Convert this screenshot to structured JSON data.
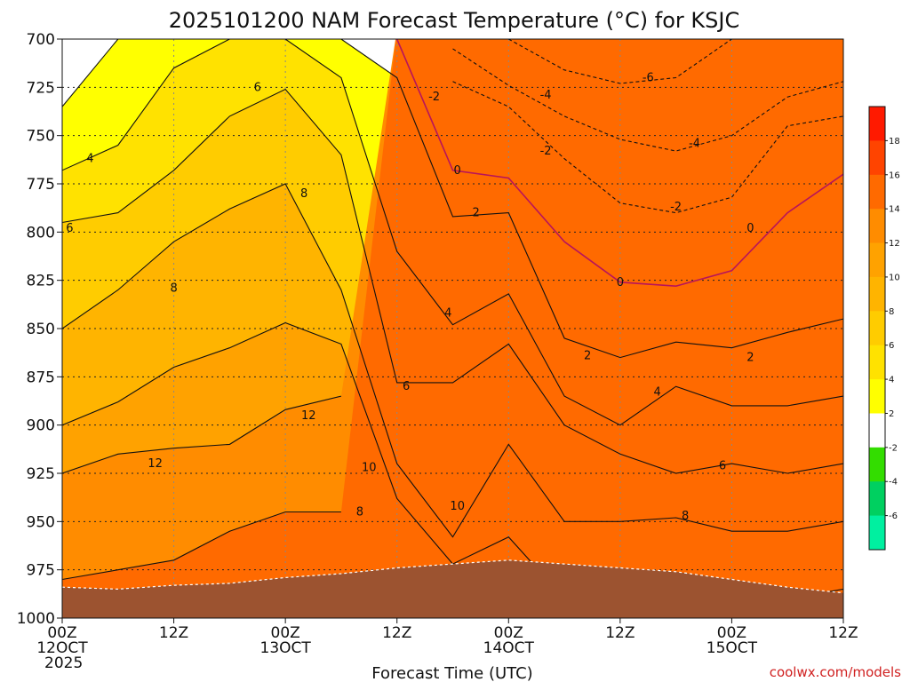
{
  "chart_data": {
    "type": "heatmap",
    "title": "2025101200 NAM Forecast Temperature (°C) for KSJC",
    "xlabel": "Forecast Time (UTC)",
    "ylabel": "",
    "credit": "coolwx.com/models",
    "y_axis": {
      "scale": "pressure (hPa), inverted",
      "ticks": [
        700,
        725,
        750,
        775,
        800,
        825,
        850,
        875,
        900,
        925,
        950,
        975,
        1000
      ],
      "range": [
        700,
        1000
      ]
    },
    "x_axis": {
      "range_hours": [
        0,
        84
      ],
      "ticks": [
        {
          "hours": 0,
          "line1": "00Z",
          "line2": "12OCT",
          "line3": "2025"
        },
        {
          "hours": 12,
          "line1": "12Z",
          "line2": "",
          "line3": ""
        },
        {
          "hours": 24,
          "line1": "00Z",
          "line2": "13OCT",
          "line3": ""
        },
        {
          "hours": 36,
          "line1": "12Z",
          "line2": "",
          "line3": ""
        },
        {
          "hours": 48,
          "line1": "00Z",
          "line2": "14OCT",
          "line3": ""
        },
        {
          "hours": 60,
          "line1": "12Z",
          "line2": "",
          "line3": ""
        },
        {
          "hours": 72,
          "line1": "00Z",
          "line2": "15OCT",
          "line3": ""
        },
        {
          "hours": 84,
          "line1": "12Z",
          "line2": "",
          "line3": ""
        }
      ]
    },
    "grid": true,
    "legend": {
      "placement": "right",
      "labels": [
        "18",
        "16",
        "14",
        "12",
        "10",
        "8",
        "6",
        "4",
        "2",
        "-2",
        "-4",
        "-6"
      ],
      "colors": [
        "#ff1a00",
        "#ff4400",
        "#ff6a00",
        "#ff8c00",
        "#ffa200",
        "#ffb400",
        "#ffcc00",
        "#ffe200",
        "#ffff00",
        "#ffffff",
        "#33dd00",
        "#00d060",
        "#00f0a0"
      ]
    },
    "hours": [
      0,
      6,
      12,
      18,
      24,
      30,
      36,
      42,
      48,
      54,
      60,
      66,
      72,
      78,
      84
    ],
    "isotherms": [
      {
        "temp": -6,
        "p": [
          null,
          null,
          null,
          null,
          null,
          null,
          null,
          null,
          700,
          716,
          723,
          720,
          700,
          null,
          null
        ]
      },
      {
        "temp": -4,
        "p": [
          null,
          null,
          null,
          null,
          null,
          null,
          null,
          705,
          724,
          740,
          752,
          758,
          750,
          730,
          722
        ]
      },
      {
        "temp": -2,
        "p": [
          null,
          null,
          null,
          null,
          null,
          null,
          null,
          722,
          735,
          762,
          785,
          790,
          782,
          745,
          740
        ]
      },
      {
        "temp": 0,
        "p": [
          700,
          null,
          null,
          null,
          null,
          null,
          700,
          768,
          772,
          805,
          826,
          828,
          820,
          790,
          770
        ]
      },
      {
        "temp": 2,
        "p": [
          735,
          700,
          null,
          null,
          null,
          700,
          720,
          792,
          790,
          855,
          865,
          857,
          860,
          852,
          845
        ]
      },
      {
        "temp": 4,
        "p": [
          768,
          755,
          715,
          700,
          700,
          720,
          810,
          848,
          832,
          885,
          900,
          880,
          890,
          890,
          885
        ]
      },
      {
        "temp": 6,
        "p": [
          795,
          790,
          768,
          740,
          726,
          760,
          878,
          878,
          858,
          900,
          915,
          925,
          920,
          925,
          920
        ]
      },
      {
        "temp": 8,
        "p": [
          850,
          830,
          805,
          788,
          775,
          830,
          920,
          958,
          910,
          950,
          950,
          948,
          955,
          955,
          950
        ]
      },
      {
        "temp": 10,
        "p": [
          900,
          888,
          870,
          860,
          847,
          858,
          938,
          972,
          958,
          990,
          990,
          985,
          990,
          990,
          985
        ]
      },
      {
        "temp": 12,
        "p": [
          925,
          915,
          912,
          910,
          892,
          885,
          null,
          null,
          null,
          null,
          null,
          null,
          null,
          null,
          null
        ]
      },
      {
        "temp": 14,
        "p": [
          980,
          975,
          970,
          955,
          945,
          945,
          null,
          null,
          null,
          null,
          null,
          null,
          null,
          null,
          null
        ]
      }
    ],
    "contour_labels": [
      {
        "text": "-6",
        "hours": 63,
        "p": 720
      },
      {
        "text": "-4",
        "hours": 52,
        "p": 729
      },
      {
        "text": "-4",
        "hours": 68,
        "p": 754
      },
      {
        "text": "-2",
        "hours": 40,
        "p": 730
      },
      {
        "text": "-2",
        "hours": 52,
        "p": 758
      },
      {
        "text": "-2",
        "hours": 66,
        "p": 787
      },
      {
        "text": "0",
        "hours": 42.5,
        "p": 768
      },
      {
        "text": "0",
        "hours": 60,
        "p": 826
      },
      {
        "text": "0",
        "hours": 74,
        "p": 798
      },
      {
        "text": "2",
        "hours": 44.5,
        "p": 790
      },
      {
        "text": "2",
        "hours": 56.5,
        "p": 864
      },
      {
        "text": "2",
        "hours": 74,
        "p": 865
      },
      {
        "text": "4",
        "hours": 3,
        "p": 762
      },
      {
        "text": "4",
        "hours": 41.5,
        "p": 842
      },
      {
        "text": "4",
        "hours": 64,
        "p": 883
      },
      {
        "text": "6",
        "hours": 21,
        "p": 725
      },
      {
        "text": "6",
        "hours": 0.8,
        "p": 798
      },
      {
        "text": "6",
        "hours": 37,
        "p": 880
      },
      {
        "text": "6",
        "hours": 71,
        "p": 921
      },
      {
        "text": "8",
        "hours": 26,
        "p": 780
      },
      {
        "text": "8",
        "hours": 12,
        "p": 829
      },
      {
        "text": "8",
        "hours": 32,
        "p": 945
      },
      {
        "text": "8",
        "hours": 67,
        "p": 947
      },
      {
        "text": "10",
        "hours": 33,
        "p": 922
      },
      {
        "text": "10",
        "hours": 42.5,
        "p": 942
      },
      {
        "text": "12",
        "hours": 10,
        "p": 920
      },
      {
        "text": "12",
        "hours": 26.5,
        "p": 895
      }
    ],
    "terrain_p": [
      984,
      985,
      983,
      982,
      979,
      977,
      974,
      972,
      970,
      972,
      974,
      976,
      980,
      984,
      987
    ]
  }
}
